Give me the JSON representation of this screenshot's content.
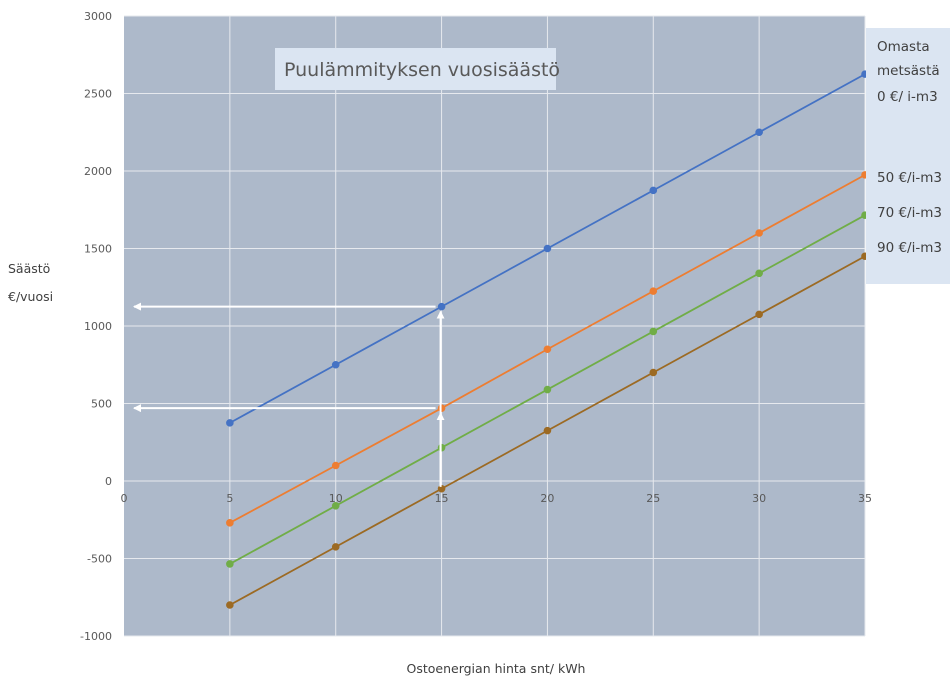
{
  "chart_data": {
    "type": "line",
    "title": "Puulämmityksen vuosisäästö",
    "xlabel": "Ostoenergian hinta snt/ kWh",
    "ylabel": [
      "Säästö",
      "€/vuosi"
    ],
    "xlim": [
      0,
      35
    ],
    "ylim": [
      -1000,
      3000
    ],
    "x_ticks": [
      0,
      5,
      10,
      15,
      20,
      25,
      30,
      35
    ],
    "y_ticks": [
      -1000,
      -500,
      0,
      500,
      1000,
      1500,
      2000,
      2500,
      3000
    ],
    "x": [
      5,
      10,
      15,
      20,
      25,
      30,
      35
    ],
    "grid": true,
    "background": "#adb9ca",
    "legend_position": "right",
    "series": [
      {
        "name": "Omasta metsästä 0 €/ i-m3",
        "legend_lines": [
          "Omasta",
          "metsästä",
          "0 €/ i-m3"
        ],
        "color": "#4472c4",
        "values": [
          375,
          750,
          1125,
          1500,
          1875,
          2250,
          2625
        ]
      },
      {
        "name": "50 €/i-m3",
        "legend_lines": [
          "50 €/i-m3"
        ],
        "color": "#ed7d31",
        "values": [
          -270,
          100,
          470,
          850,
          1225,
          1600,
          1975
        ]
      },
      {
        "name": "70 €/i-m3",
        "legend_lines": [
          "70 €/i-m3"
        ],
        "color": "#70ad47",
        "values": [
          -535,
          -160,
          215,
          590,
          965,
          1340,
          1715
        ]
      },
      {
        "name": "90 €/i-m3",
        "legend_lines": [
          "90 €/i-m3"
        ],
        "color": "#9c6a23",
        "values": [
          -800,
          -425,
          -50,
          325,
          700,
          1075,
          1450
        ]
      }
    ],
    "annotations": [
      {
        "type": "arrow-path",
        "color": "#ffffff",
        "points": [
          [
            15,
            -50
          ],
          [
            15,
            1125
          ],
          [
            0,
            1125
          ]
        ]
      },
      {
        "type": "arrow-path",
        "color": "#ffffff",
        "points": [
          [
            15,
            -50
          ],
          [
            15,
            470
          ],
          [
            0,
            470
          ]
        ]
      }
    ]
  }
}
